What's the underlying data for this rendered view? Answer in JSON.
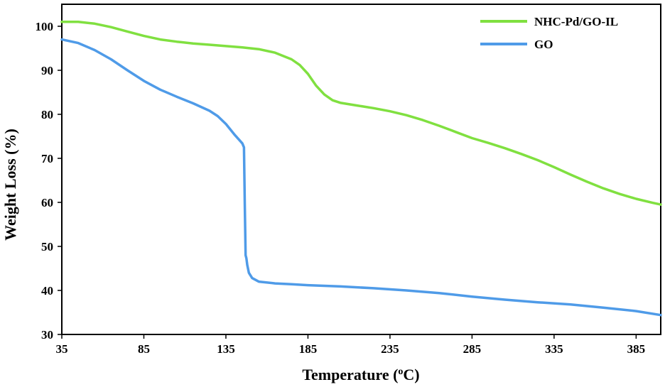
{
  "chart_data": {
    "type": "line",
    "xlabel": "Temperature (°C)",
    "xlabel_main": "Temperature (",
    "xlabel_sup": "o",
    "xlabel_tail": "C)",
    "ylabel": "Weight Loss (%)",
    "xlim": [
      35,
      400
    ],
    "ylim": [
      30,
      105
    ],
    "xticks": [
      35,
      85,
      135,
      185,
      235,
      285,
      335,
      385
    ],
    "yticks": [
      30,
      40,
      50,
      60,
      70,
      80,
      90,
      100
    ],
    "grid": false,
    "legend_position": "top-right",
    "series": [
      {
        "name": "NHC-Pd/GO-IL",
        "color": "#80e040",
        "x": [
          35,
          45,
          55,
          65,
          75,
          85,
          95,
          105,
          115,
          125,
          135,
          145,
          155,
          165,
          175,
          180,
          185,
          190,
          195,
          200,
          205,
          215,
          225,
          235,
          245,
          255,
          265,
          275,
          285,
          295,
          305,
          315,
          325,
          335,
          345,
          355,
          365,
          375,
          385,
          395,
          400
        ],
        "y": [
          101,
          101,
          100.6,
          99.8,
          98.8,
          97.8,
          97.0,
          96.5,
          96.1,
          95.8,
          95.5,
          95.2,
          94.8,
          94.0,
          92.5,
          91.2,
          89.2,
          86.5,
          84.5,
          83.2,
          82.6,
          82.0,
          81.4,
          80.7,
          79.8,
          78.7,
          77.4,
          76.0,
          74.6,
          73.5,
          72.3,
          71.0,
          69.6,
          68.0,
          66.3,
          64.7,
          63.2,
          61.9,
          60.8,
          59.9,
          59.5
        ]
      },
      {
        "name": "GO",
        "color": "#4f9be8",
        "x": [
          35,
          45,
          55,
          65,
          75,
          85,
          95,
          105,
          115,
          125,
          130,
          135,
          140,
          145,
          146,
          146.5,
          147,
          147.5,
          148,
          149,
          151,
          155,
          165,
          175,
          185,
          205,
          225,
          245,
          265,
          285,
          305,
          325,
          345,
          365,
          385,
          400
        ],
        "y": [
          97,
          96.2,
          94.6,
          92.5,
          90.0,
          87.6,
          85.6,
          84.0,
          82.5,
          80.8,
          79.6,
          77.8,
          75.5,
          73.4,
          72.5,
          60.0,
          48.0,
          47.3,
          45.8,
          44.0,
          42.8,
          42.0,
          41.6,
          41.4,
          41.2,
          40.9,
          40.5,
          40.0,
          39.4,
          38.6,
          37.9,
          37.3,
          36.8,
          36.1,
          35.3,
          34.4
        ]
      }
    ]
  }
}
